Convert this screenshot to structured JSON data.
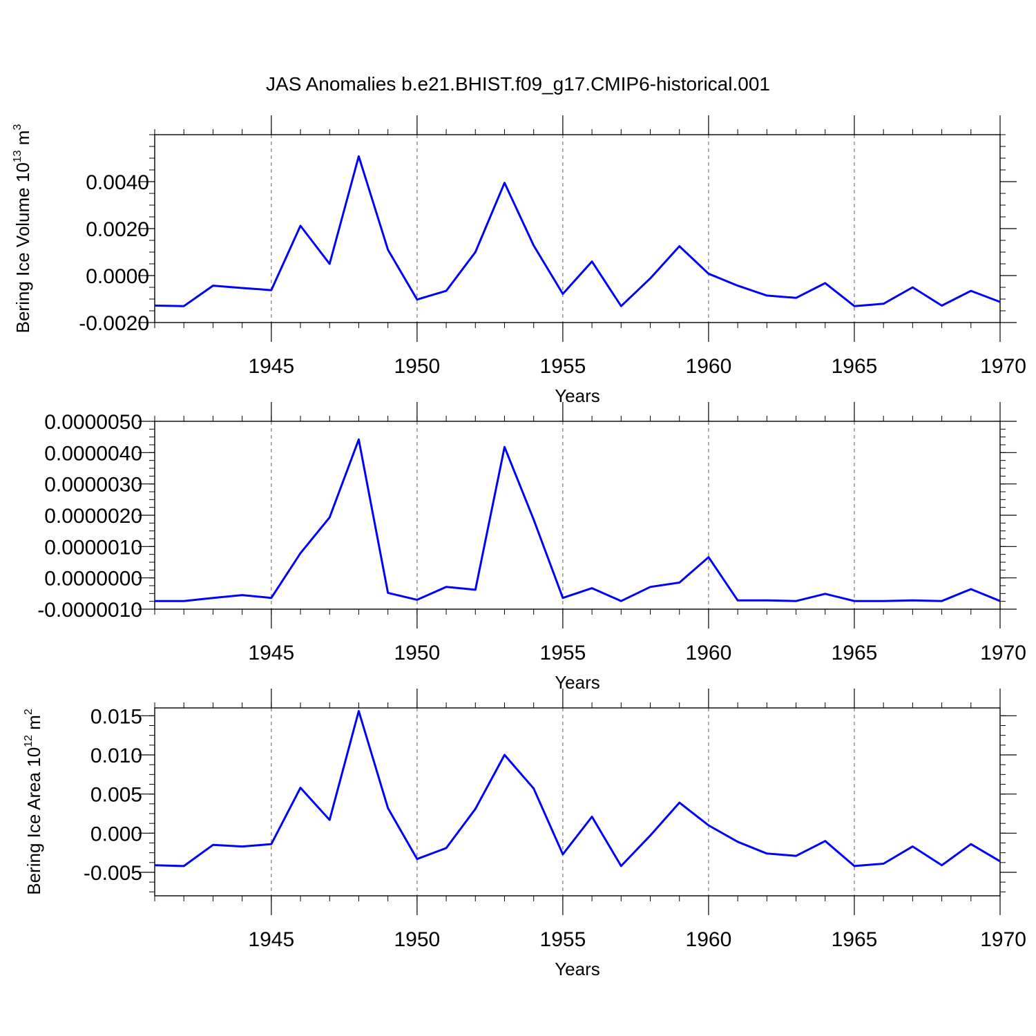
{
  "figure_title": "JAS Anomalies b.e21.BHIST.f09_g17.CMIP6-historical.001",
  "colors": {
    "line": "#0000ff",
    "axis": "#000000",
    "grid": "#777777"
  },
  "chart_data": [
    {
      "type": "line",
      "title": "JAS Anomalies b.e21.BHIST.f09_g17.CMIP6-historical.001",
      "xlabel": "Years",
      "ylabel": "Bering Ice Volume 10¹³ m³",
      "ylabel_parts": {
        "base": "Bering Ice Volume 10",
        "exp1": "13",
        "mid": " m",
        "exp2": "3"
      },
      "xlim": [
        1941,
        1970
      ],
      "ylim": [
        -0.002,
        0.006
      ],
      "x_ticks": [
        1945,
        1950,
        1955,
        1960,
        1965,
        1970
      ],
      "x_tick_labels": [
        "1945",
        "1950",
        "1955",
        "1960",
        "1965",
        "1970"
      ],
      "y_ticks": [
        -0.002,
        0.0,
        0.002,
        0.004
      ],
      "y_tick_labels": [
        "-0.0020",
        "0.0000",
        "0.0020",
        "0.0040"
      ],
      "x": [
        1941,
        1942,
        1943,
        1944,
        1945,
        1946,
        1947,
        1948,
        1949,
        1950,
        1951,
        1952,
        1953,
        1954,
        1955,
        1956,
        1957,
        1958,
        1959,
        1960,
        1961,
        1962,
        1963,
        1964,
        1965,
        1966,
        1967,
        1968,
        1969,
        1970
      ],
      "values": [
        -0.00128,
        -0.0013,
        -0.00043,
        -0.00053,
        -0.00062,
        0.00212,
        0.0005,
        0.00508,
        0.0011,
        -0.00102,
        -0.00065,
        0.001,
        0.00395,
        0.00128,
        -0.00078,
        0.0006,
        -0.0013,
        -0.00012,
        0.00125,
        8e-05,
        -0.00043,
        -0.00085,
        -0.00095,
        -0.00032,
        -0.0013,
        -0.0012,
        -0.0005,
        -0.00128,
        -0.00065,
        -0.00112
      ],
      "grid": "dashed vertical lines at major x ticks"
    },
    {
      "type": "line",
      "xlabel": "Years",
      "ylabel": "",
      "xlim": [
        1941,
        1970
      ],
      "ylim": [
        -1e-06,
        5e-06
      ],
      "x_ticks": [
        1945,
        1950,
        1955,
        1960,
        1965,
        1970
      ],
      "x_tick_labels": [
        "1945",
        "1950",
        "1955",
        "1960",
        "1965",
        "1970"
      ],
      "y_ticks": [
        -1e-06,
        0.0,
        1e-06,
        2e-06,
        3e-06,
        4e-06,
        5e-06
      ],
      "y_tick_labels": [
        "-0.0000010",
        "0.0000000",
        "0.0000010",
        "0.0000020",
        "0.0000030",
        "0.0000040",
        "0.0000050"
      ],
      "x": [
        1941,
        1942,
        1943,
        1944,
        1945,
        1946,
        1947,
        1948,
        1949,
        1950,
        1951,
        1952,
        1953,
        1954,
        1955,
        1956,
        1957,
        1958,
        1959,
        1960,
        1961,
        1962,
        1963,
        1964,
        1965,
        1966,
        1967,
        1968,
        1969,
        1970
      ],
      "values": [
        -7.4e-07,
        -7.4e-07,
        -6.4e-07,
        -5.5e-07,
        -6.4e-07,
        7.9e-07,
        1.93e-06,
        4.42e-06,
        -4.8e-07,
        -7e-07,
        -2.9e-07,
        -3.8e-07,
        4.18e-06,
        1.86e-06,
        -6.4e-07,
        -3.3e-07,
        -7.4e-07,
        -2.9e-07,
        -1.5e-07,
        6.6e-07,
        -7.2e-07,
        -7.2e-07,
        -7.4e-07,
        -5.1e-07,
        -7.4e-07,
        -7.4e-07,
        -7.2e-07,
        -7.4e-07,
        -3.6e-07,
        -7.4e-07
      ],
      "grid": "dashed vertical lines at major x ticks"
    },
    {
      "type": "line",
      "xlabel": "Years",
      "ylabel": "Bering Ice Area 10¹² m²",
      "ylabel_parts": {
        "base": "Bering Ice Area 10",
        "exp1": "12",
        "mid": " m",
        "exp2": "2"
      },
      "xlim": [
        1941,
        1970
      ],
      "ylim": [
        -0.008,
        0.016
      ],
      "x_ticks": [
        1945,
        1950,
        1955,
        1960,
        1965,
        1970
      ],
      "x_tick_labels": [
        "1945",
        "1950",
        "1955",
        "1960",
        "1965",
        "1970"
      ],
      "y_ticks": [
        -0.005,
        0.0,
        0.005,
        0.01,
        0.015
      ],
      "y_tick_labels": [
        "-0.005",
        "0.000",
        "0.005",
        "0.010",
        "0.015"
      ],
      "x": [
        1941,
        1942,
        1943,
        1944,
        1945,
        1946,
        1947,
        1948,
        1949,
        1950,
        1951,
        1952,
        1953,
        1954,
        1955,
        1956,
        1957,
        1958,
        1959,
        1960,
        1961,
        1962,
        1963,
        1964,
        1965,
        1966,
        1967,
        1968,
        1969,
        1970
      ],
      "values": [
        -0.0041,
        -0.0042,
        -0.0015,
        -0.0017,
        -0.0014,
        0.0058,
        0.0017,
        0.0156,
        0.0032,
        -0.0033,
        -0.0019,
        0.0031,
        0.01,
        0.0057,
        -0.0027,
        0.0021,
        -0.0042,
        -0.0003,
        0.0039,
        0.001,
        -0.0011,
        -0.0026,
        -0.0029,
        -0.001,
        -0.0042,
        -0.0039,
        -0.0017,
        -0.0041,
        -0.0014,
        -0.0036
      ],
      "grid": "dashed vertical lines at major x ticks"
    }
  ]
}
